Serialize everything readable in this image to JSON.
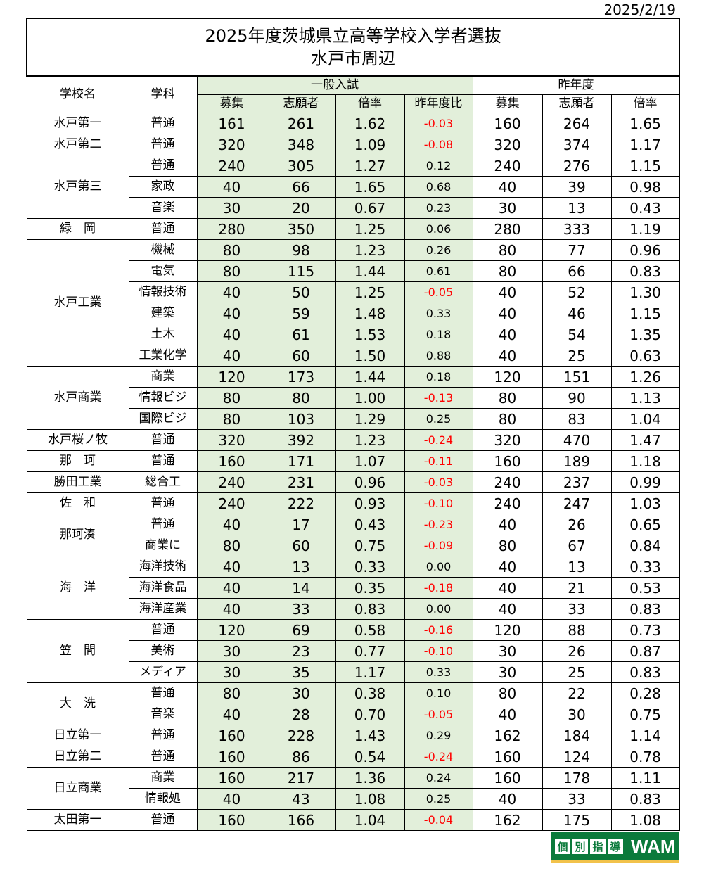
{
  "date": "2025/2/19",
  "title_line1": "2025年度茨城県立高等学校入学者選抜",
  "title_line2": "水戸市周辺",
  "headers": {
    "school": "学校名",
    "dept": "学科",
    "general": "一般入試",
    "prev": "昨年度",
    "quota": "募集",
    "applicants": "志願者",
    "ratio": "倍率",
    "diff": "昨年度比"
  },
  "colors": {
    "general_bg": "#e2efda",
    "negative": "#ff0000",
    "logo_green": "#0b7a3b"
  },
  "logo": {
    "kanji": [
      "個",
      "別",
      "指",
      "導"
    ],
    "text": "WAM"
  },
  "schools": [
    {
      "name": "水戸第一",
      "depts": [
        [
          "普通",
          "161",
          "261",
          "1.62",
          "-0.03",
          "160",
          "264",
          "1.65"
        ]
      ]
    },
    {
      "name": "水戸第二",
      "depts": [
        [
          "普通",
          "320",
          "348",
          "1.09",
          "-0.08",
          "320",
          "374",
          "1.17"
        ]
      ]
    },
    {
      "name": "水戸第三",
      "depts": [
        [
          "普通",
          "240",
          "305",
          "1.27",
          "0.12",
          "240",
          "276",
          "1.15"
        ],
        [
          "家政",
          "40",
          "66",
          "1.65",
          "0.68",
          "40",
          "39",
          "0.98"
        ],
        [
          "音楽",
          "30",
          "20",
          "0.67",
          "0.23",
          "30",
          "13",
          "0.43"
        ]
      ]
    },
    {
      "name": "緑　岡",
      "depts": [
        [
          "普通",
          "280",
          "350",
          "1.25",
          "0.06",
          "280",
          "333",
          "1.19"
        ]
      ]
    },
    {
      "name": "水戸工業",
      "depts": [
        [
          "機械",
          "80",
          "98",
          "1.23",
          "0.26",
          "80",
          "77",
          "0.96"
        ],
        [
          "電気",
          "80",
          "115",
          "1.44",
          "0.61",
          "80",
          "66",
          "0.83"
        ],
        [
          "情報技術",
          "40",
          "50",
          "1.25",
          "-0.05",
          "40",
          "52",
          "1.30"
        ],
        [
          "建築",
          "40",
          "59",
          "1.48",
          "0.33",
          "40",
          "46",
          "1.15"
        ],
        [
          "土木",
          "40",
          "61",
          "1.53",
          "0.18",
          "40",
          "54",
          "1.35"
        ],
        [
          "工業化学",
          "40",
          "60",
          "1.50",
          "0.88",
          "40",
          "25",
          "0.63"
        ]
      ]
    },
    {
      "name": "水戸商業",
      "depts": [
        [
          "商業",
          "120",
          "173",
          "1.44",
          "0.18",
          "120",
          "151",
          "1.26"
        ],
        [
          "情報ビジ",
          "80",
          "80",
          "1.00",
          "-0.13",
          "80",
          "90",
          "1.13"
        ],
        [
          "国際ビジ",
          "80",
          "103",
          "1.29",
          "0.25",
          "80",
          "83",
          "1.04"
        ]
      ]
    },
    {
      "name": "水戸桜ノ牧",
      "depts": [
        [
          "普通",
          "320",
          "392",
          "1.23",
          "-0.24",
          "320",
          "470",
          "1.47"
        ]
      ]
    },
    {
      "name": "那　珂",
      "depts": [
        [
          "普通",
          "160",
          "171",
          "1.07",
          "-0.11",
          "160",
          "189",
          "1.18"
        ]
      ]
    },
    {
      "name": "勝田工業",
      "depts": [
        [
          "総合工",
          "240",
          "231",
          "0.96",
          "-0.03",
          "240",
          "237",
          "0.99"
        ]
      ]
    },
    {
      "name": "佐　和",
      "depts": [
        [
          "普通",
          "240",
          "222",
          "0.93",
          "-0.10",
          "240",
          "247",
          "1.03"
        ]
      ]
    },
    {
      "name": "那珂湊",
      "depts": [
        [
          "普通",
          "40",
          "17",
          "0.43",
          "-0.23",
          "40",
          "26",
          "0.65"
        ],
        [
          "商業に",
          "80",
          "60",
          "0.75",
          "-0.09",
          "80",
          "67",
          "0.84"
        ]
      ]
    },
    {
      "name": "海　洋",
      "depts": [
        [
          "海洋技術",
          "40",
          "13",
          "0.33",
          "0.00",
          "40",
          "13",
          "0.33"
        ],
        [
          "海洋食品",
          "40",
          "14",
          "0.35",
          "-0.18",
          "40",
          "21",
          "0.53"
        ],
        [
          "海洋産業",
          "40",
          "33",
          "0.83",
          "0.00",
          "40",
          "33",
          "0.83"
        ]
      ]
    },
    {
      "name": "笠　間",
      "depts": [
        [
          "普通",
          "120",
          "69",
          "0.58",
          "-0.16",
          "120",
          "88",
          "0.73"
        ],
        [
          "美術",
          "30",
          "23",
          "0.77",
          "-0.10",
          "30",
          "26",
          "0.87"
        ],
        [
          "メディア",
          "30",
          "35",
          "1.17",
          "0.33",
          "30",
          "25",
          "0.83"
        ]
      ]
    },
    {
      "name": "大　洗",
      "depts": [
        [
          "普通",
          "80",
          "30",
          "0.38",
          "0.10",
          "80",
          "22",
          "0.28"
        ],
        [
          "音楽",
          "40",
          "28",
          "0.70",
          "-0.05",
          "40",
          "30",
          "0.75"
        ]
      ]
    },
    {
      "name": "日立第一",
      "depts": [
        [
          "普通",
          "160",
          "228",
          "1.43",
          "0.29",
          "162",
          "184",
          "1.14"
        ]
      ]
    },
    {
      "name": "日立第二",
      "depts": [
        [
          "普通",
          "160",
          "86",
          "0.54",
          "-0.24",
          "160",
          "124",
          "0.78"
        ]
      ]
    },
    {
      "name": "日立商業",
      "depts": [
        [
          "商業",
          "160",
          "217",
          "1.36",
          "0.24",
          "160",
          "178",
          "1.11"
        ],
        [
          "情報処",
          "40",
          "43",
          "1.08",
          "0.25",
          "40",
          "33",
          "0.83"
        ]
      ]
    },
    {
      "name": "太田第一",
      "depts": [
        [
          "普通",
          "160",
          "166",
          "1.04",
          "-0.04",
          "162",
          "175",
          "1.08"
        ]
      ]
    }
  ]
}
